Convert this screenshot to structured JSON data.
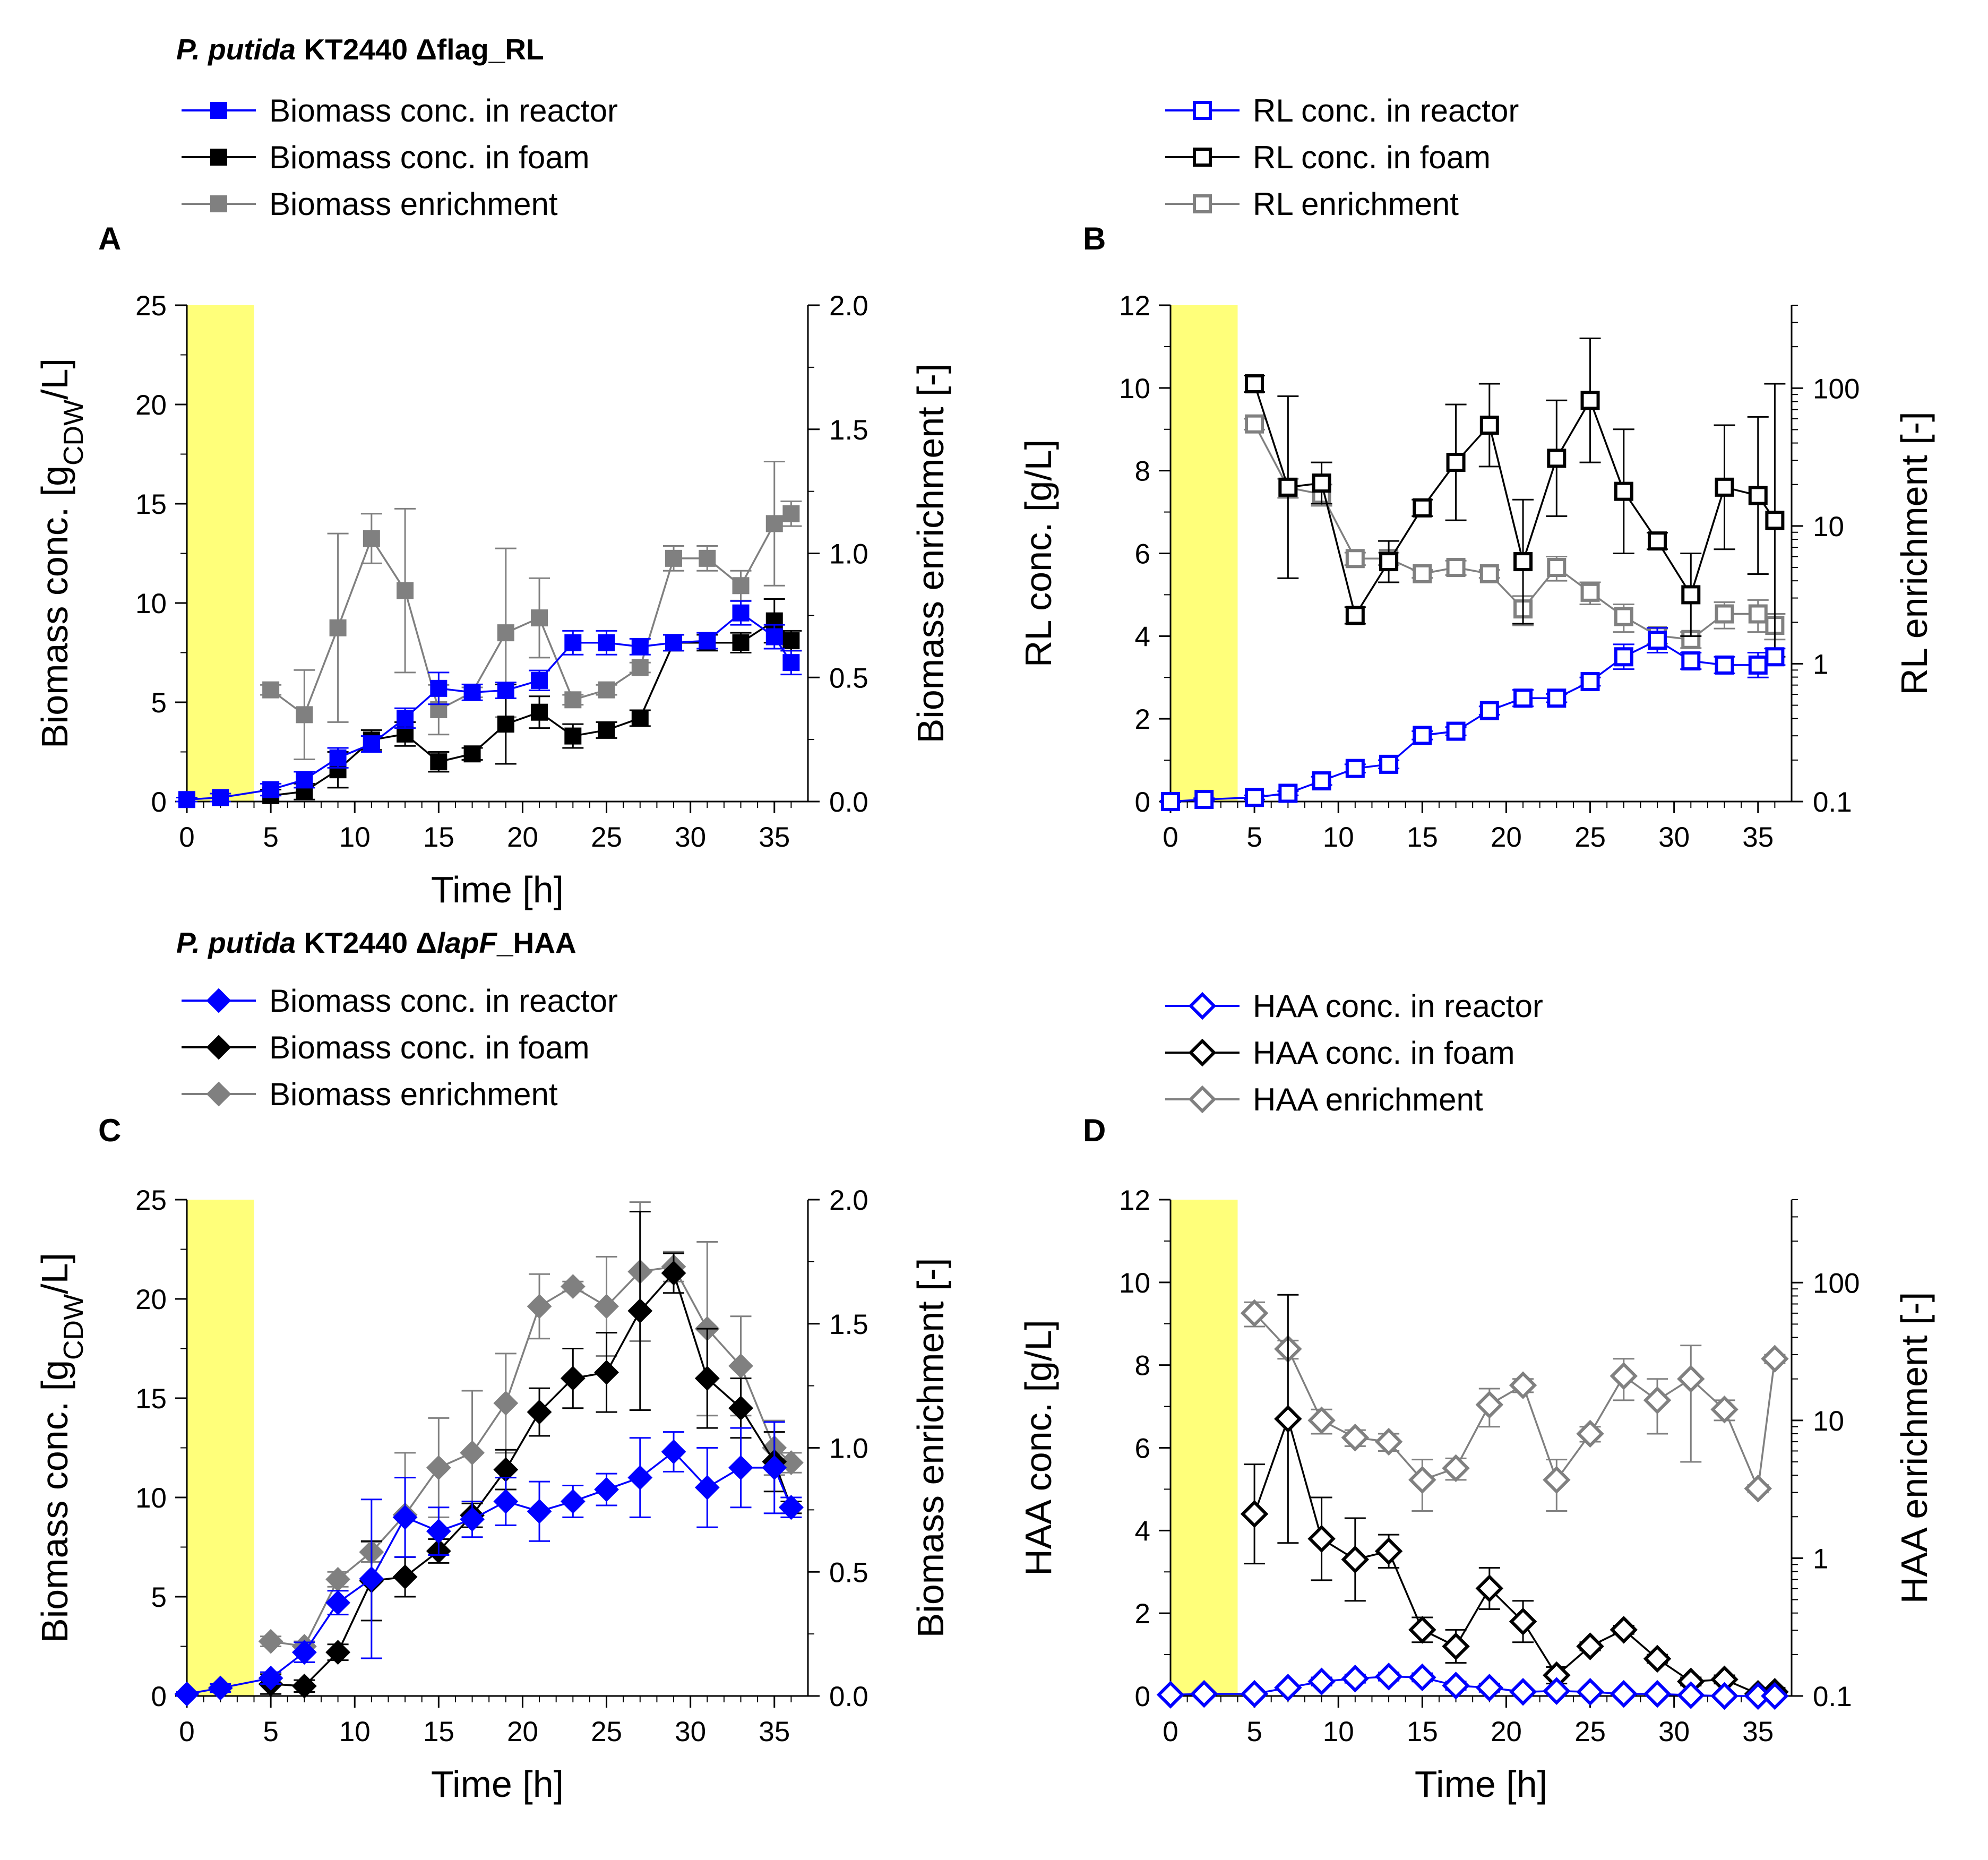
{
  "colors": {
    "reactor": "#0000ff",
    "foam": "#000000",
    "enrichment": "#808080",
    "shade": "#ffff7a",
    "open_fill": "#ffffff"
  },
  "strains": {
    "rl": {
      "italic": "P. putida",
      "rest": " KT2440 Δflag_RL"
    },
    "haa": {
      "italic": "P. putida",
      "mid": " KT2440 Δ",
      "italic2": "lapF",
      "rest": "_HAA"
    }
  },
  "legends": {
    "A": [
      {
        "label": "Biomass conc. in reactor",
        "series": "reactor"
      },
      {
        "label": "Biomass conc. in foam",
        "series": "foam"
      },
      {
        "label": "Biomass enrichment",
        "series": "enrichment"
      }
    ],
    "B": [
      {
        "label": "RL conc. in reactor",
        "series": "reactor"
      },
      {
        "label": "RL conc. in foam",
        "series": "foam"
      },
      {
        "label": "RL enrichment",
        "series": "enrichment"
      }
    ],
    "C": [
      {
        "label": "Biomass conc. in reactor",
        "series": "reactor"
      },
      {
        "label": "Biomass conc. in foam",
        "series": "foam"
      },
      {
        "label": "Biomass enrichment",
        "series": "enrichment"
      }
    ],
    "D": [
      {
        "label": "HAA conc. in reactor",
        "series": "reactor"
      },
      {
        "label": "HAA conc. in foam",
        "series": "foam"
      },
      {
        "label": "HAA enrichment",
        "series": "enrichment"
      }
    ]
  },
  "chart_data": [
    {
      "panel": "A",
      "type": "line",
      "marker": "square-filled",
      "xlabel": "Time [h]",
      "xlim": [
        0,
        37
      ],
      "xticks": [
        0,
        5,
        10,
        15,
        20,
        25,
        30,
        35
      ],
      "ylabel_left": {
        "pre": "Biomass conc. [g",
        "sub": "CDW",
        "post": "/L]"
      },
      "ylim_left": [
        0,
        25
      ],
      "yticks_left": [
        0,
        5,
        10,
        15,
        20,
        25
      ],
      "ylabel_right": "Biomass enrichment [-]",
      "ylim_right": [
        0,
        2.0
      ],
      "yticks_right": [
        "0.0",
        "0.5",
        "1.0",
        "1.5",
        "2.0"
      ],
      "right_scale": "linear",
      "shaded_x": [
        0,
        4
      ],
      "series": [
        {
          "name": "reactor",
          "axis": "left",
          "x": [
            0,
            2,
            5,
            7,
            9,
            11,
            13,
            15,
            17,
            19,
            21,
            23,
            25,
            27,
            29,
            31,
            33,
            35,
            36
          ],
          "y": [
            0.1,
            0.2,
            0.6,
            1.1,
            2.2,
            2.9,
            4.2,
            5.7,
            5.5,
            5.6,
            6.1,
            8.0,
            8.0,
            7.8,
            8.0,
            8.1,
            9.5,
            8.3,
            7.0
          ],
          "err": [
            0.1,
            0.2,
            0.3,
            0.4,
            0.5,
            0.4,
            0.5,
            0.8,
            0.4,
            0.4,
            0.5,
            0.6,
            0.6,
            0.4,
            0.4,
            0.4,
            0.6,
            0.6,
            0.6
          ]
        },
        {
          "name": "foam",
          "axis": "left",
          "x": [
            5,
            7,
            9,
            11,
            13,
            15,
            17,
            19,
            21,
            23,
            25,
            27,
            29,
            31,
            33,
            35,
            36
          ],
          "y": [
            0.3,
            0.5,
            1.6,
            3.1,
            3.4,
            2.0,
            2.4,
            3.9,
            4.5,
            3.3,
            3.6,
            4.2,
            8.0,
            8.0,
            8.0,
            9.1,
            8.1
          ],
          "err": [
            0.3,
            0.4,
            0.9,
            0.5,
            0.6,
            0.5,
            0.3,
            2.0,
            0.8,
            0.6,
            0.4,
            0.4,
            0.4,
            0.4,
            0.5,
            1.1,
            0.5
          ]
        },
        {
          "name": "enrichment",
          "axis": "right",
          "x": [
            5,
            7,
            9,
            11,
            13,
            15,
            17,
            19,
            21,
            23,
            25,
            27,
            29,
            31,
            33,
            35,
            36
          ],
          "y": [
            0.45,
            0.35,
            0.7,
            1.06,
            0.85,
            0.37,
            0.44,
            0.68,
            0.74,
            0.41,
            0.45,
            0.54,
            0.98,
            0.98,
            0.87,
            1.12,
            1.16
          ],
          "err": [
            0.02,
            0.18,
            0.38,
            0.1,
            0.33,
            0.1,
            0.02,
            0.34,
            0.16,
            0.02,
            0.02,
            0.02,
            0.05,
            0.05,
            0.06,
            0.25,
            0.05
          ]
        }
      ]
    },
    {
      "panel": "B",
      "type": "line",
      "marker": "square-open",
      "xlabel": "",
      "xlim": [
        0,
        37
      ],
      "xticks": [
        0,
        5,
        10,
        15,
        20,
        25,
        30,
        35
      ],
      "ylabel_left": "RL conc. [g/L]",
      "ylim_left": [
        0,
        12
      ],
      "yticks_left": [
        0,
        2,
        4,
        6,
        8,
        10,
        12
      ],
      "ylabel_right": "RL enrichment [-]",
      "ylim_right": [
        0.1,
        400
      ],
      "yticks_right": [
        "0.1",
        "1",
        "10",
        "100"
      ],
      "right_scale": "log",
      "shaded_x": [
        0,
        4
      ],
      "series": [
        {
          "name": "reactor",
          "axis": "left",
          "x": [
            0,
            2,
            5,
            7,
            9,
            11,
            13,
            15,
            17,
            19,
            21,
            23,
            25,
            27,
            29,
            31,
            33,
            35,
            36
          ],
          "y": [
            0.0,
            0.05,
            0.1,
            0.2,
            0.5,
            0.8,
            0.9,
            1.6,
            1.7,
            2.2,
            2.5,
            2.5,
            2.9,
            3.5,
            3.9,
            3.4,
            3.3,
            3.3,
            3.5
          ],
          "err": [
            0.02,
            0.03,
            0.05,
            0.05,
            0.1,
            0.1,
            0.1,
            0.1,
            0.1,
            0.1,
            0.2,
            0.1,
            0.1,
            0.3,
            0.3,
            0.2,
            0.2,
            0.3,
            0.2
          ]
        },
        {
          "name": "foam",
          "axis": "left",
          "x": [
            5,
            7,
            9,
            11,
            13,
            15,
            17,
            19,
            21,
            23,
            25,
            27,
            29,
            31,
            33,
            35,
            36
          ],
          "y": [
            10.1,
            7.6,
            7.7,
            4.5,
            5.8,
            7.1,
            8.2,
            9.1,
            5.8,
            8.3,
            9.7,
            7.5,
            6.3,
            5.0,
            7.6,
            7.4,
            6.8
          ],
          "err": [
            0.2,
            2.2,
            0.5,
            0.2,
            0.5,
            0.2,
            1.4,
            1.0,
            1.5,
            1.4,
            1.5,
            1.5,
            0.2,
            1.0,
            1.5,
            1.9,
            3.3
          ]
        },
        {
          "name": "enrichment",
          "axis": "right",
          "x": [
            5,
            7,
            9,
            11,
            13,
            15,
            17,
            19,
            21,
            23,
            25,
            27,
            29,
            31,
            33,
            35,
            36
          ],
          "y": [
            55,
            19,
            17,
            5.8,
            5.8,
            4.5,
            5.0,
            4.5,
            2.5,
            5.0,
            3.3,
            2.2,
            1.6,
            1.5,
            2.3,
            2.3,
            1.9
          ],
          "err": [
            5,
            3,
            3,
            0.6,
            0.6,
            0.3,
            0.6,
            0.3,
            0.6,
            1.0,
            0.6,
            0.5,
            0.2,
            0.2,
            0.5,
            0.6,
            0.4
          ]
        }
      ]
    },
    {
      "panel": "C",
      "type": "line",
      "marker": "diamond-filled",
      "xlabel": "Time [h]",
      "xlim": [
        0,
        37
      ],
      "xticks": [
        0,
        5,
        10,
        15,
        20,
        25,
        30,
        35
      ],
      "ylabel_left": {
        "pre": "Biomass conc. [g",
        "sub": "CDW",
        "post": "/L]"
      },
      "ylim_left": [
        0,
        25
      ],
      "yticks_left": [
        0,
        5,
        10,
        15,
        20,
        25
      ],
      "ylabel_right": "Biomass enrichment [-]",
      "ylim_right": [
        0,
        2.0
      ],
      "yticks_right": [
        "0.0",
        "0.5",
        "1.0",
        "1.5",
        "2.0"
      ],
      "right_scale": "linear",
      "shaded_x": [
        0,
        4
      ],
      "series": [
        {
          "name": "reactor",
          "axis": "left",
          "x": [
            0,
            2,
            5,
            7,
            9,
            11,
            13,
            15,
            17,
            19,
            21,
            23,
            25,
            27,
            29,
            31,
            33,
            35,
            36
          ],
          "y": [
            0.1,
            0.4,
            0.9,
            2.2,
            4.7,
            5.9,
            9.0,
            8.3,
            8.9,
            9.8,
            9.3,
            9.8,
            10.4,
            11.0,
            12.3,
            10.5,
            11.5,
            11.5,
            9.5
          ],
          "err": [
            0.1,
            0.2,
            0.3,
            0.5,
            0.6,
            4.0,
            2.0,
            1.2,
            0.9,
            1.2,
            1.5,
            0.8,
            0.8,
            2.0,
            1.0,
            2.0,
            2.0,
            2.3,
            0.5
          ]
        },
        {
          "name": "foam",
          "axis": "left",
          "x": [
            5,
            7,
            9,
            11,
            13,
            15,
            17,
            19,
            21,
            23,
            25,
            27,
            29,
            31,
            33,
            35,
            36
          ],
          "y": [
            0.6,
            0.5,
            2.2,
            5.8,
            6.0,
            7.3,
            9.1,
            11.4,
            14.3,
            16.0,
            16.3,
            19.4,
            21.3,
            16.0,
            14.5,
            11.8,
            9.5
          ],
          "err": [
            0.5,
            0.3,
            0.4,
            2.0,
            1.0,
            0.6,
            0.6,
            1.0,
            1.2,
            1.5,
            2.0,
            5.0,
            1.0,
            2.5,
            1.5,
            1.5,
            0.3
          ]
        },
        {
          "name": "enrichment",
          "axis": "right",
          "x": [
            5,
            7,
            9,
            11,
            13,
            15,
            17,
            19,
            21,
            23,
            25,
            27,
            29,
            31,
            33,
            35,
            36
          ],
          "y": [
            0.22,
            0.2,
            0.47,
            0.58,
            0.73,
            0.92,
            0.98,
            1.18,
            1.57,
            1.65,
            1.57,
            1.71,
            1.73,
            1.48,
            1.33,
            1.0,
            0.94
          ],
          "err": [
            0.02,
            0.02,
            0.03,
            0.04,
            0.25,
            0.2,
            0.25,
            0.2,
            0.13,
            0.02,
            0.2,
            0.28,
            0.06,
            0.35,
            0.2,
            0.11,
            0.04
          ]
        }
      ]
    },
    {
      "panel": "D",
      "type": "line",
      "marker": "diamond-open",
      "xlabel": "Time [h]",
      "xlim": [
        0,
        37
      ],
      "xticks": [
        0,
        5,
        10,
        15,
        20,
        25,
        30,
        35
      ],
      "ylabel_left": "HAA conc. [g/L]",
      "ylim_left": [
        0,
        12
      ],
      "yticks_left": [
        0,
        2,
        4,
        6,
        8,
        10,
        12
      ],
      "ylabel_right": "HAA enrichment [-]",
      "ylim_right": [
        0.1,
        400
      ],
      "yticks_right": [
        "0.1",
        "1",
        "10",
        "100"
      ],
      "right_scale": "log",
      "shaded_x": [
        0,
        4
      ],
      "series": [
        {
          "name": "reactor",
          "axis": "left",
          "x": [
            0,
            2,
            5,
            7,
            9,
            11,
            13,
            15,
            17,
            19,
            21,
            23,
            25,
            27,
            29,
            31,
            33,
            35,
            36
          ],
          "y": [
            0.03,
            0.05,
            0.05,
            0.2,
            0.35,
            0.42,
            0.47,
            0.45,
            0.25,
            0.2,
            0.1,
            0.12,
            0.1,
            0.05,
            0.05,
            0.02,
            0.0,
            0.0,
            0.0
          ],
          "err": [
            0.02,
            0.02,
            0.02,
            0.05,
            0.1,
            0.1,
            0.1,
            0.1,
            0.1,
            0.1,
            0.05,
            0.05,
            0.05,
            0.02,
            0.02,
            0.02,
            0.02,
            0.02,
            0.02
          ]
        },
        {
          "name": "foam",
          "axis": "left",
          "x": [
            5,
            7,
            9,
            11,
            13,
            15,
            17,
            19,
            21,
            23,
            25,
            27,
            29,
            31,
            33,
            35,
            36
          ],
          "y": [
            4.4,
            6.7,
            3.8,
            3.3,
            3.5,
            1.6,
            1.2,
            2.6,
            1.8,
            0.5,
            1.2,
            1.6,
            0.9,
            0.35,
            0.4,
            0.05,
            0.1
          ],
          "err": [
            1.2,
            3.0,
            1.0,
            1.0,
            0.4,
            0.3,
            0.4,
            0.5,
            0.5,
            0.2,
            0.1,
            0.1,
            0.1,
            0.1,
            0.1,
            0.05,
            0.1
          ]
        },
        {
          "name": "enrichment",
          "axis": "right",
          "x": [
            5,
            7,
            9,
            11,
            13,
            15,
            17,
            19,
            21,
            23,
            25,
            27,
            29,
            31,
            33,
            35,
            36
          ],
          "y": [
            60,
            33,
            10,
            7.5,
            7.0,
            3.7,
            4.5,
            13,
            18,
            3.7,
            8.0,
            21,
            14,
            20,
            12,
            3.2,
            28
          ],
          "err": [
            12,
            5,
            2,
            1,
            1,
            1.5,
            0.8,
            4,
            2,
            1.5,
            1,
            7,
            6,
            15,
            2,
            0.2,
            2
          ]
        }
      ]
    }
  ]
}
